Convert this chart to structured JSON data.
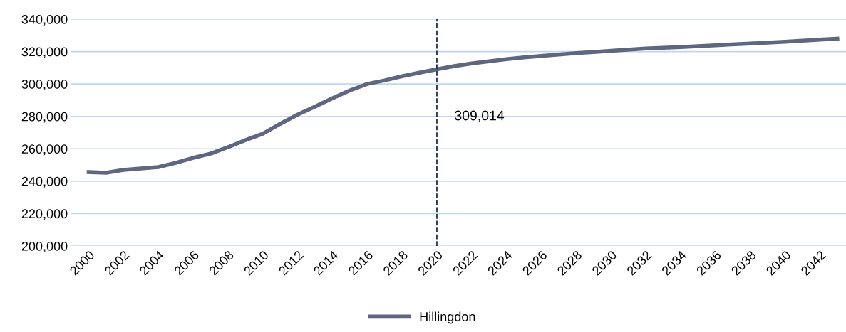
{
  "chart_data": {
    "type": "line",
    "x": [
      2000,
      2001,
      2002,
      2003,
      2004,
      2005,
      2006,
      2007,
      2008,
      2009,
      2010,
      2011,
      2012,
      2013,
      2014,
      2015,
      2016,
      2017,
      2018,
      2019,
      2020,
      2021,
      2022,
      2023,
      2024,
      2025,
      2026,
      2027,
      2028,
      2029,
      2030,
      2032,
      2034,
      2036,
      2038,
      2040,
      2042,
      2043
    ],
    "series": [
      {
        "name": "Hillingdon",
        "color": "#5f6780",
        "values": [
          245600,
          245200,
          247000,
          247800,
          248700,
          251300,
          254400,
          257000,
          261000,
          265300,
          269300,
          275400,
          281100,
          286000,
          291200,
          296000,
          300000,
          302200,
          304800,
          307000,
          309014,
          311000,
          312700,
          314000,
          315300,
          316400,
          317300,
          318200,
          319000,
          319700,
          320500,
          321900,
          322800,
          323900,
          325000,
          326100,
          327400,
          328000
        ]
      }
    ],
    "xlim": [
      1999,
      2043.5
    ],
    "xticks": [
      2000,
      2002,
      2004,
      2006,
      2008,
      2010,
      2012,
      2014,
      2016,
      2018,
      2020,
      2022,
      2024,
      2026,
      2028,
      2030,
      2032,
      2034,
      2036,
      2038,
      2040,
      2042
    ],
    "ylim": [
      200000,
      340000
    ],
    "yticks": [
      {
        "value": 200000,
        "label": "200,000"
      },
      {
        "value": 220000,
        "label": "220,000"
      },
      {
        "value": 240000,
        "label": "240,000"
      },
      {
        "value": 260000,
        "label": "260,000"
      },
      {
        "value": 280000,
        "label": "280,000"
      },
      {
        "value": 300000,
        "label": "300,000"
      },
      {
        "value": 320000,
        "label": "320,000"
      },
      {
        "value": 340000,
        "label": "340,000"
      }
    ],
    "ref_lines": [
      {
        "axis": "x",
        "value": 2020,
        "color": "#1f2d4d",
        "line_style": "dashed"
      }
    ],
    "annotations": [
      "309,014"
    ],
    "grid": "y",
    "legend": "bottom",
    "marker": "none",
    "line_style": "solid"
  }
}
